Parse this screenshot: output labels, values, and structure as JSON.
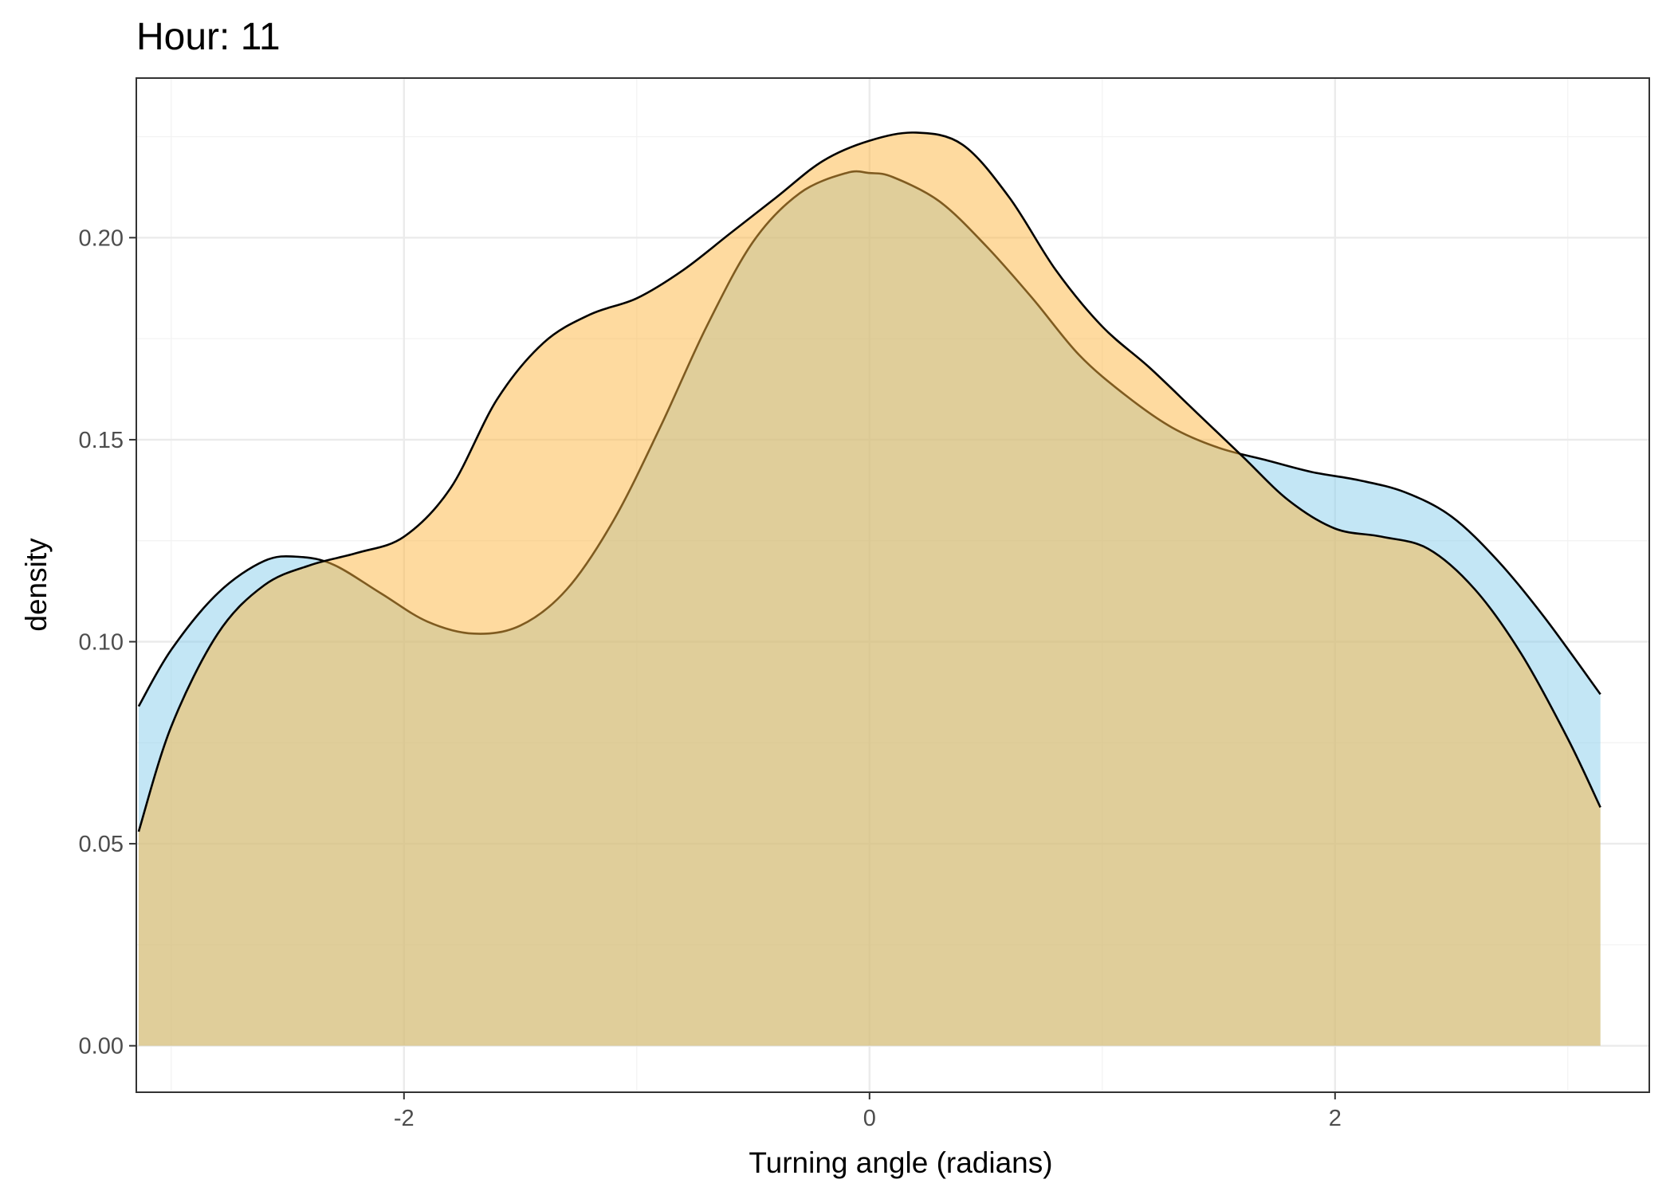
{
  "chart_data": {
    "type": "area",
    "title": "Hour: 11",
    "xlabel": "Turning angle (radians)",
    "ylabel": "density",
    "xlim": [
      -3.15,
      3.35
    ],
    "ylim": [
      -0.0115,
      0.2395
    ],
    "x_ticks": [
      -2,
      0,
      2
    ],
    "x_tick_labels": [
      "-2",
      "0",
      "2"
    ],
    "y_ticks": [
      0.0,
      0.05,
      0.1,
      0.15,
      0.2
    ],
    "y_tick_labels": [
      "0.00",
      "0.05",
      "0.10",
      "0.15",
      "0.20"
    ],
    "grid": true,
    "legend": "none",
    "series": [
      {
        "fill": "#87ceeb",
        "x": [
          -3.14,
          -3.0,
          -2.8,
          -2.6,
          -2.45,
          -2.3,
          -2.1,
          -1.9,
          -1.7,
          -1.5,
          -1.3,
          -1.1,
          -0.9,
          -0.7,
          -0.5,
          -0.3,
          -0.1,
          0.0,
          0.1,
          0.3,
          0.5,
          0.7,
          0.9,
          1.1,
          1.3,
          1.5,
          1.7,
          1.9,
          2.1,
          2.3,
          2.5,
          2.7,
          2.9,
          3.14
        ],
        "y": [
          0.084,
          0.098,
          0.112,
          0.12,
          0.121,
          0.119,
          0.112,
          0.105,
          0.102,
          0.104,
          0.113,
          0.13,
          0.153,
          0.178,
          0.199,
          0.211,
          0.216,
          0.216,
          0.215,
          0.209,
          0.198,
          0.185,
          0.171,
          0.161,
          0.153,
          0.148,
          0.145,
          0.142,
          0.14,
          0.137,
          0.131,
          0.12,
          0.106,
          0.087
        ]
      },
      {
        "fill": "#fdb53f",
        "x": [
          -3.14,
          -3.0,
          -2.8,
          -2.6,
          -2.4,
          -2.2,
          -2.0,
          -1.8,
          -1.6,
          -1.4,
          -1.2,
          -1.0,
          -0.8,
          -0.6,
          -0.4,
          -0.2,
          0.0,
          0.2,
          0.4,
          0.6,
          0.8,
          1.0,
          1.2,
          1.4,
          1.6,
          1.8,
          2.0,
          2.2,
          2.4,
          2.6,
          2.8,
          3.0,
          3.14
        ],
        "y": [
          0.053,
          0.079,
          0.102,
          0.114,
          0.119,
          0.122,
          0.126,
          0.138,
          0.16,
          0.174,
          0.181,
          0.185,
          0.192,
          0.201,
          0.21,
          0.219,
          0.224,
          0.226,
          0.223,
          0.21,
          0.192,
          0.178,
          0.168,
          0.157,
          0.146,
          0.135,
          0.128,
          0.126,
          0.123,
          0.113,
          0.097,
          0.076,
          0.059
        ]
      }
    ]
  }
}
